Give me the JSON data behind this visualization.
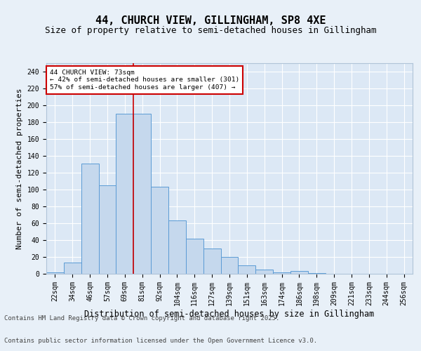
{
  "title_line1": "44, CHURCH VIEW, GILLINGHAM, SP8 4XE",
  "title_line2": "Size of property relative to semi-detached houses in Gillingham",
  "xlabel": "Distribution of semi-detached houses by size in Gillingham",
  "ylabel": "Number of semi-detached properties",
  "categories": [
    "22sqm",
    "34sqm",
    "46sqm",
    "57sqm",
    "69sqm",
    "81sqm",
    "92sqm",
    "104sqm",
    "116sqm",
    "127sqm",
    "139sqm",
    "151sqm",
    "163sqm",
    "174sqm",
    "186sqm",
    "198sqm",
    "209sqm",
    "221sqm",
    "233sqm",
    "244sqm",
    "256sqm"
  ],
  "values": [
    2,
    13,
    131,
    105,
    190,
    190,
    103,
    63,
    42,
    30,
    20,
    10,
    5,
    2,
    3,
    1,
    0,
    0,
    0,
    0,
    0
  ],
  "bar_color": "#c5d8ed",
  "bar_edge_color": "#5b9bd5",
  "background_color": "#e8f0f8",
  "plot_bg_color": "#dce8f5",
  "grid_color": "#ffffff",
  "vline_color": "#cc0000",
  "vline_x": 4.5,
  "annotation_text": "44 CHURCH VIEW: 73sqm\n← 42% of semi-detached houses are smaller (301)\n57% of semi-detached houses are larger (407) →",
  "annotation_box_edge": "#cc0000",
  "annotation_box_face": "#ffffff",
  "ylim": [
    0,
    250
  ],
  "yticks": [
    0,
    20,
    40,
    60,
    80,
    100,
    120,
    140,
    160,
    180,
    200,
    220,
    240
  ],
  "footer_line1": "Contains HM Land Registry data © Crown copyright and database right 2025.",
  "footer_line2": "Contains public sector information licensed under the Open Government Licence v3.0.",
  "title_fontsize": 11,
  "subtitle_fontsize": 9,
  "axis_label_fontsize": 8,
  "tick_fontsize": 7,
  "footer_fontsize": 6.5
}
